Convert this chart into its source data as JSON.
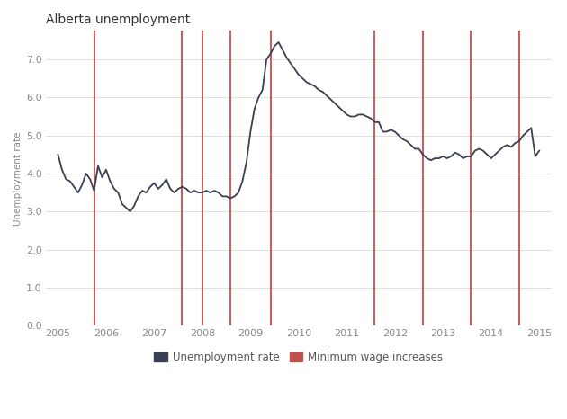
{
  "title": "Alberta unemployment",
  "ylabel": "Unemployment rate",
  "xlim": [
    2004.75,
    2015.25
  ],
  "ylim": [
    0.0,
    7.75
  ],
  "yticks": [
    0.0,
    1.0,
    2.0,
    3.0,
    4.0,
    5.0,
    6.0,
    7.0
  ],
  "xticks": [
    2005,
    2006,
    2007,
    2008,
    2009,
    2010,
    2011,
    2012,
    2013,
    2014,
    2015
  ],
  "line_color": "#3a3f52",
  "vline_color": "#c0504d",
  "bg_color": "#ffffff",
  "plot_bg_color": "#ffffff",
  "grid_color": "#e0e0e0",
  "min_wage_years": [
    2005.75,
    2007.58,
    2008.0,
    2008.58,
    2009.42,
    2011.58,
    2012.58,
    2013.58,
    2014.58
  ],
  "unemployment_data": [
    [
      2005.0,
      4.5
    ],
    [
      2005.083,
      4.1
    ],
    [
      2005.167,
      3.85
    ],
    [
      2005.25,
      3.8
    ],
    [
      2005.333,
      3.65
    ],
    [
      2005.417,
      3.5
    ],
    [
      2005.5,
      3.7
    ],
    [
      2005.583,
      4.0
    ],
    [
      2005.667,
      3.85
    ],
    [
      2005.75,
      3.55
    ],
    [
      2005.833,
      4.2
    ],
    [
      2005.917,
      3.9
    ],
    [
      2006.0,
      4.1
    ],
    [
      2006.083,
      3.8
    ],
    [
      2006.167,
      3.6
    ],
    [
      2006.25,
      3.5
    ],
    [
      2006.333,
      3.2
    ],
    [
      2006.417,
      3.1
    ],
    [
      2006.5,
      3.0
    ],
    [
      2006.583,
      3.15
    ],
    [
      2006.667,
      3.4
    ],
    [
      2006.75,
      3.55
    ],
    [
      2006.833,
      3.5
    ],
    [
      2006.917,
      3.65
    ],
    [
      2007.0,
      3.75
    ],
    [
      2007.083,
      3.6
    ],
    [
      2007.167,
      3.7
    ],
    [
      2007.25,
      3.85
    ],
    [
      2007.333,
      3.6
    ],
    [
      2007.417,
      3.5
    ],
    [
      2007.5,
      3.6
    ],
    [
      2007.583,
      3.65
    ],
    [
      2007.667,
      3.6
    ],
    [
      2007.75,
      3.5
    ],
    [
      2007.833,
      3.55
    ],
    [
      2007.917,
      3.5
    ],
    [
      2008.0,
      3.5
    ],
    [
      2008.083,
      3.55
    ],
    [
      2008.167,
      3.5
    ],
    [
      2008.25,
      3.55
    ],
    [
      2008.333,
      3.5
    ],
    [
      2008.417,
      3.4
    ],
    [
      2008.5,
      3.4
    ],
    [
      2008.583,
      3.35
    ],
    [
      2008.667,
      3.4
    ],
    [
      2008.75,
      3.5
    ],
    [
      2008.833,
      3.8
    ],
    [
      2008.917,
      4.3
    ],
    [
      2009.0,
      5.1
    ],
    [
      2009.083,
      5.7
    ],
    [
      2009.167,
      6.0
    ],
    [
      2009.25,
      6.2
    ],
    [
      2009.333,
      7.0
    ],
    [
      2009.417,
      7.15
    ],
    [
      2009.5,
      7.35
    ],
    [
      2009.583,
      7.45
    ],
    [
      2009.667,
      7.25
    ],
    [
      2009.75,
      7.05
    ],
    [
      2009.833,
      6.9
    ],
    [
      2009.917,
      6.75
    ],
    [
      2010.0,
      6.6
    ],
    [
      2010.083,
      6.5
    ],
    [
      2010.167,
      6.4
    ],
    [
      2010.25,
      6.35
    ],
    [
      2010.333,
      6.3
    ],
    [
      2010.417,
      6.2
    ],
    [
      2010.5,
      6.15
    ],
    [
      2010.583,
      6.05
    ],
    [
      2010.667,
      5.95
    ],
    [
      2010.75,
      5.85
    ],
    [
      2010.833,
      5.75
    ],
    [
      2010.917,
      5.65
    ],
    [
      2011.0,
      5.55
    ],
    [
      2011.083,
      5.5
    ],
    [
      2011.167,
      5.5
    ],
    [
      2011.25,
      5.55
    ],
    [
      2011.333,
      5.55
    ],
    [
      2011.417,
      5.5
    ],
    [
      2011.5,
      5.45
    ],
    [
      2011.583,
      5.35
    ],
    [
      2011.667,
      5.35
    ],
    [
      2011.75,
      5.1
    ],
    [
      2011.833,
      5.1
    ],
    [
      2011.917,
      5.15
    ],
    [
      2012.0,
      5.1
    ],
    [
      2012.083,
      5.0
    ],
    [
      2012.167,
      4.9
    ],
    [
      2012.25,
      4.85
    ],
    [
      2012.333,
      4.75
    ],
    [
      2012.417,
      4.65
    ],
    [
      2012.5,
      4.65
    ],
    [
      2012.583,
      4.5
    ],
    [
      2012.667,
      4.4
    ],
    [
      2012.75,
      4.35
    ],
    [
      2012.833,
      4.4
    ],
    [
      2012.917,
      4.4
    ],
    [
      2013.0,
      4.45
    ],
    [
      2013.083,
      4.4
    ],
    [
      2013.167,
      4.45
    ],
    [
      2013.25,
      4.55
    ],
    [
      2013.333,
      4.5
    ],
    [
      2013.417,
      4.4
    ],
    [
      2013.5,
      4.45
    ],
    [
      2013.583,
      4.45
    ],
    [
      2013.667,
      4.6
    ],
    [
      2013.75,
      4.65
    ],
    [
      2013.833,
      4.6
    ],
    [
      2013.917,
      4.5
    ],
    [
      2014.0,
      4.4
    ],
    [
      2014.083,
      4.5
    ],
    [
      2014.167,
      4.6
    ],
    [
      2014.25,
      4.7
    ],
    [
      2014.333,
      4.75
    ],
    [
      2014.417,
      4.7
    ],
    [
      2014.5,
      4.8
    ],
    [
      2014.583,
      4.85
    ],
    [
      2014.667,
      5.0
    ],
    [
      2014.75,
      5.1
    ],
    [
      2014.833,
      5.2
    ],
    [
      2014.917,
      4.45
    ],
    [
      2015.0,
      4.6
    ]
  ],
  "legend_line_color": "#3a3f52",
  "legend_vline_color": "#c0504d",
  "legend_line_label": "Unemployment rate",
  "legend_vline_label": "Minimum wage increases",
  "title_fontsize": 10,
  "axis_fontsize": 7.5,
  "tick_fontsize": 8,
  "tick_color": "#888888",
  "title_color": "#333333"
}
